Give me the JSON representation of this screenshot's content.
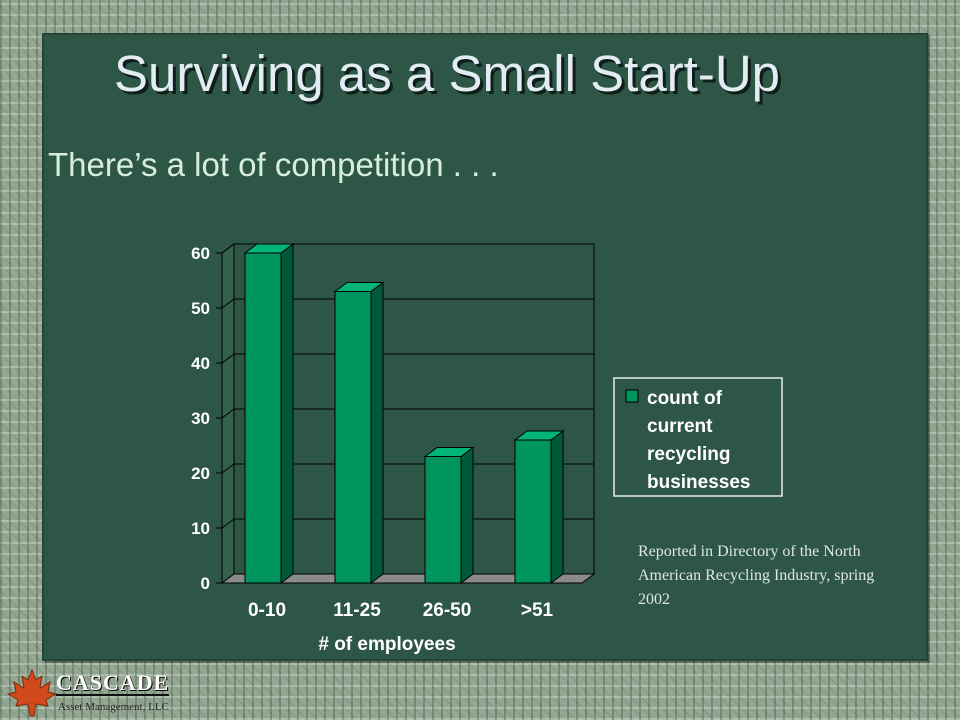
{
  "slide": {
    "title": "Surviving as a Small Start-Up",
    "subtitle": "There’s a lot of competition . . .",
    "source_note": "Reported in Directory of the North American Recycling Industry, spring 2002"
  },
  "logo": {
    "name": "CASCADE",
    "tagline": "Asset Management, LLC",
    "icon": "maple-leaf-icon"
  },
  "colors": {
    "background": "#2e5646",
    "bar_front": "#00955f",
    "bar_side": "#005a3a",
    "bar_top": "#00b577",
    "title": "#e3ebf3"
  },
  "chart_data": {
    "type": "bar",
    "categories": [
      "0-10",
      "11-25",
      "26-50",
      ">51"
    ],
    "series": [
      {
        "name": "count of current recycling businesses",
        "values": [
          60,
          53,
          23,
          26
        ]
      }
    ],
    "legend_lines": [
      "count of",
      "current",
      "recycling",
      "businesses"
    ],
    "xlabel": "# of employees",
    "ylabel": "",
    "ylim": [
      0,
      60
    ],
    "yticks": [
      0,
      10,
      20,
      30,
      40,
      50,
      60
    ],
    "grid": true,
    "legend_position": "right",
    "three_d": true
  }
}
